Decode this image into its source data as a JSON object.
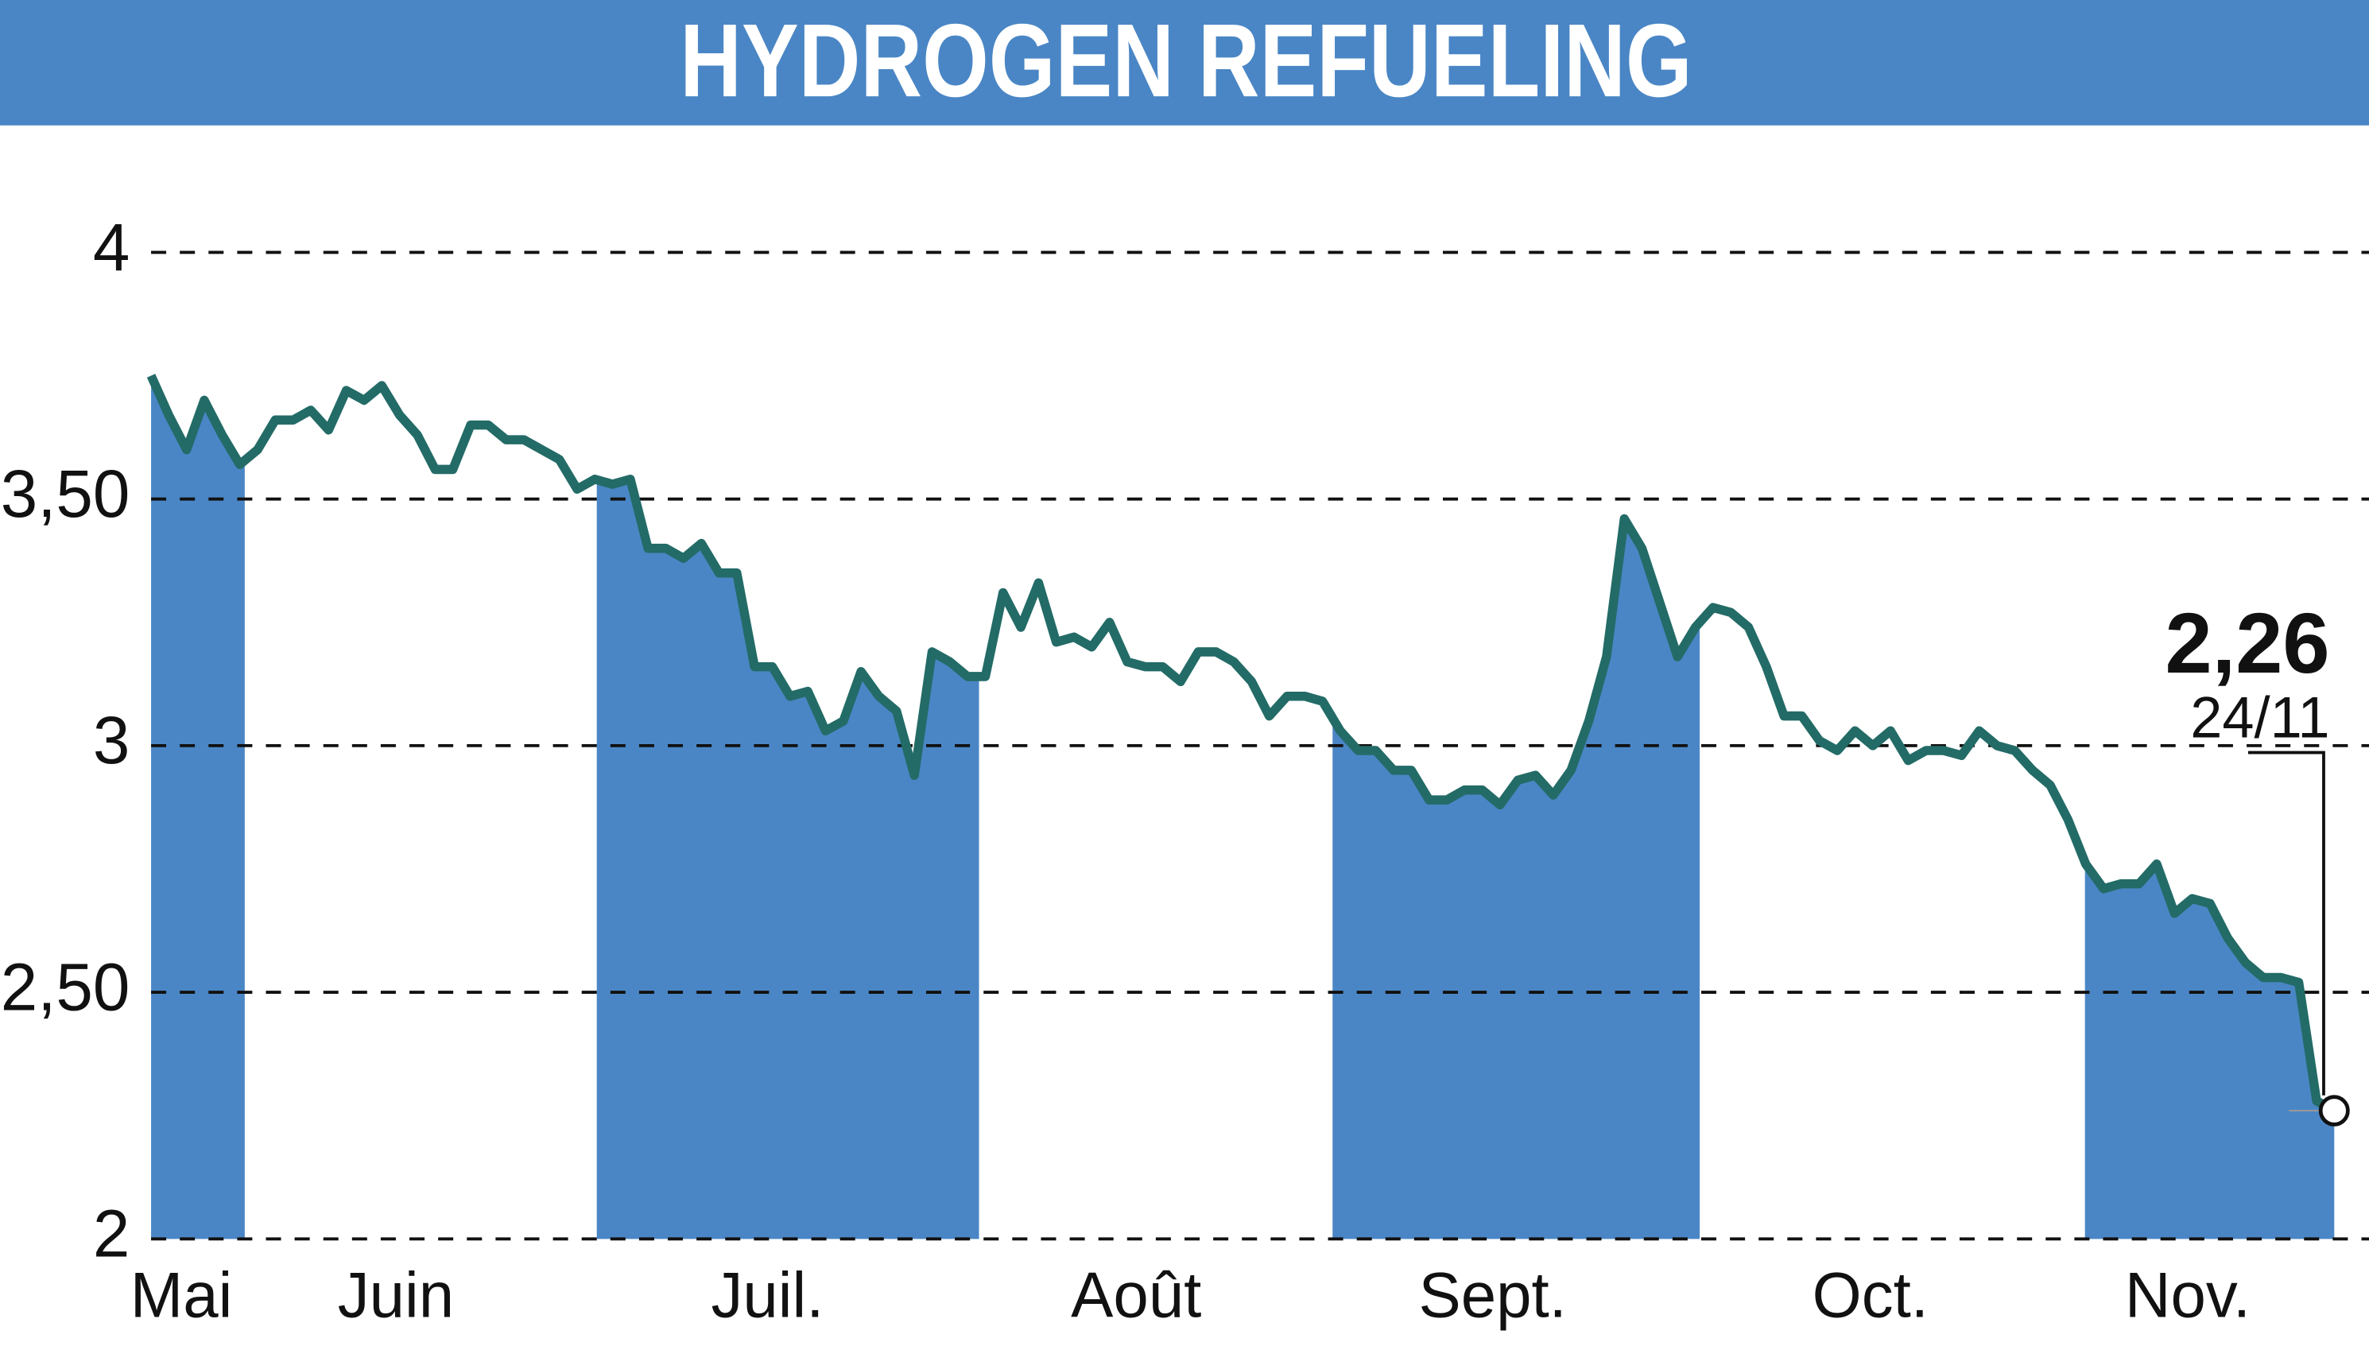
{
  "chart_data": {
    "type": "line",
    "title": "HYDROGEN REFUELING",
    "months": [
      "Mai",
      "Juin",
      "Juil.",
      "Août",
      "Sept.",
      "Oct.",
      "Nov."
    ],
    "series": [
      {
        "color": "#236b67",
        "fill": "#4a86c5",
        "values": [
          3.75,
          3.67,
          3.6,
          3.7,
          3.63,
          3.57,
          3.6,
          3.66,
          3.66,
          3.68,
          3.64,
          3.72,
          3.7,
          3.73,
          3.67,
          3.63,
          3.56,
          3.56,
          3.65,
          3.65,
          3.62,
          3.62,
          3.6,
          3.58,
          3.52,
          3.54,
          3.53,
          3.54,
          3.4,
          3.4,
          3.38,
          3.41,
          3.35,
          3.35,
          3.16,
          3.16,
          3.1,
          3.11,
          3.03,
          3.05,
          3.15,
          3.1,
          3.07,
          2.94,
          3.19,
          3.17,
          3.14,
          3.14,
          3.31,
          3.24,
          3.33,
          3.21,
          3.22,
          3.2,
          3.25,
          3.17,
          3.16,
          3.16,
          3.13,
          3.19,
          3.19,
          3.17,
          3.13,
          3.06,
          3.1,
          3.1,
          3.09,
          3.03,
          2.99,
          2.99,
          2.95,
          2.95,
          2.89,
          2.89,
          2.91,
          2.91,
          2.88,
          2.93,
          2.94,
          2.9,
          2.95,
          3.05,
          3.18,
          3.46,
          3.4,
          3.29,
          3.18,
          3.24,
          3.28,
          3.27,
          3.24,
          3.16,
          3.06,
          3.06,
          3.01,
          2.99,
          3.03,
          3.0,
          3.03,
          2.97,
          2.99,
          2.99,
          2.98,
          3.03,
          3.0,
          2.99,
          2.95,
          2.92,
          2.85,
          2.76,
          2.71,
          2.72,
          2.72,
          2.76,
          2.66,
          2.69,
          2.68,
          2.61,
          2.56,
          2.53,
          2.53,
          2.52,
          2.28,
          2.26
        ]
      }
    ],
    "ylim": [
      2,
      4
    ],
    "yticks": [
      2,
      {
        "value": 2.5,
        "label": "2,50"
      },
      3,
      {
        "value": 3.5,
        "label": "3,50"
      },
      4
    ],
    "grid": true,
    "annotation": {
      "label": "2,26",
      "date": "24/11"
    }
  }
}
